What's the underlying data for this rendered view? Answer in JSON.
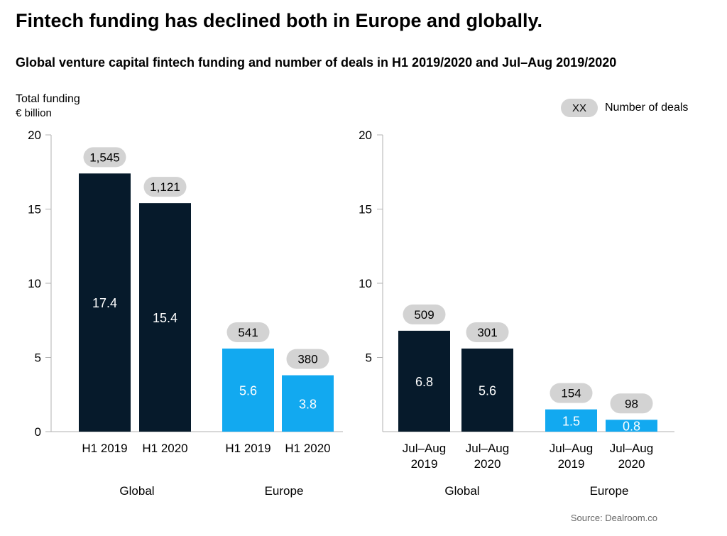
{
  "title": "Fintech funding has declined both in Europe and globally.",
  "subtitle": "Global venture capital fintech funding and number of deals in H1 2019/2020 and Jul–Aug 2019/2020",
  "ylabel_line1": "Total funding",
  "ylabel_line2": "€ billion",
  "legend": {
    "symbol_text": "XX",
    "label": "Number of deals"
  },
  "source": "Source: Dealroom.co",
  "colors": {
    "global": "#061a2b",
    "europe": "#12a9f0",
    "pill": "#d3d3d3",
    "axis": "#b0b0b0"
  },
  "chart_data": [
    {
      "type": "bar",
      "ylim": [
        0,
        20
      ],
      "yticks": [
        0,
        5,
        10,
        15,
        20
      ],
      "groups": [
        {
          "label": "Global",
          "region": "global",
          "bars": [
            {
              "category": [
                "H1 2019"
              ],
              "value": 17.4,
              "value_label": "17.4",
              "deals": "1,545"
            },
            {
              "category": [
                "H1 2020"
              ],
              "value": 15.4,
              "value_label": "15.4",
              "deals": "1,121"
            }
          ]
        },
        {
          "label": "Europe",
          "region": "europe",
          "bars": [
            {
              "category": [
                "H1 2019"
              ],
              "value": 5.6,
              "value_label": "5.6",
              "deals": "541"
            },
            {
              "category": [
                "H1 2020"
              ],
              "value": 3.8,
              "value_label": "3.8",
              "deals": "380"
            }
          ]
        }
      ]
    },
    {
      "type": "bar",
      "ylim": [
        0,
        20
      ],
      "yticks": [
        5,
        10,
        15,
        20
      ],
      "groups": [
        {
          "label": "Global",
          "region": "global",
          "bars": [
            {
              "category": [
                "Jul–Aug",
                "2019"
              ],
              "value": 6.8,
              "value_label": "6.8",
              "deals": "509"
            },
            {
              "category": [
                "Jul–Aug",
                "2020"
              ],
              "value": 5.6,
              "value_label": "5.6",
              "deals": "301"
            }
          ]
        },
        {
          "label": "Europe",
          "region": "europe",
          "bars": [
            {
              "category": [
                "Jul–Aug",
                "2019"
              ],
              "value": 1.5,
              "value_label": "1.5",
              "deals": "154"
            },
            {
              "category": [
                "Jul–Aug",
                "2020"
              ],
              "value": 0.8,
              "value_label": "0.8",
              "deals": "98"
            }
          ]
        }
      ]
    }
  ]
}
